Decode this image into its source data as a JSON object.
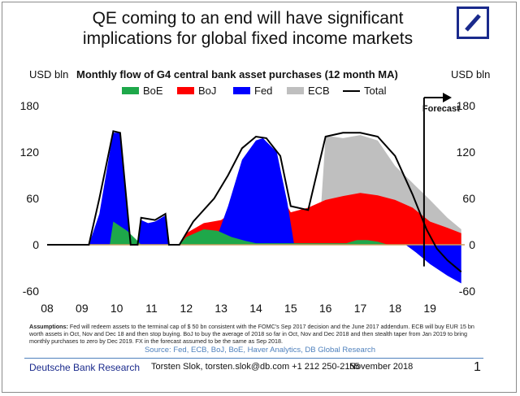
{
  "title_line1": "QE coming to an end will have significant",
  "title_line2": "implications for global fixed income markets",
  "chart_data": {
    "type": "area",
    "title": "Monthly flow of G4 central bank asset purchases (12 month MA)",
    "unit_left": "USD bln",
    "unit_right": "USD bln",
    "ylim": [
      -60,
      180
    ],
    "yticks": [
      180,
      120,
      60,
      0,
      -60
    ],
    "xlim": [
      2008,
      2020
    ],
    "xticks": [
      2008,
      2009,
      2010,
      2011,
      2012,
      2013,
      2014,
      2015,
      2016,
      2017,
      2018,
      2019
    ],
    "xticklabels": [
      "08",
      "09",
      "10",
      "11",
      "12",
      "13",
      "14",
      "15",
      "16",
      "17",
      "18",
      "19"
    ],
    "legend": [
      "BoE",
      "BoJ",
      "Fed",
      "ECB",
      "Total"
    ],
    "annotation": "Forecast",
    "forecast_start": 2018.83,
    "colors": {
      "BoE": "#1ea84a",
      "BoJ": "#ff0000",
      "Fed": "#0000ff",
      "ECB": "#bfbfbf",
      "Total": "#000000"
    },
    "series": [
      {
        "name": "BoE",
        "points": [
          [
            2008,
            0
          ],
          [
            2009.8,
            0
          ],
          [
            2009.9,
            30
          ],
          [
            2010.3,
            18
          ],
          [
            2010.6,
            5
          ],
          [
            2010.7,
            0
          ],
          [
            2011.8,
            0
          ],
          [
            2012.0,
            10
          ],
          [
            2012.5,
            20
          ],
          [
            2012.9,
            18
          ],
          [
            2013.3,
            10
          ],
          [
            2013.7,
            5
          ],
          [
            2014.0,
            2
          ],
          [
            2016.6,
            2
          ],
          [
            2016.9,
            6
          ],
          [
            2017.2,
            6
          ],
          [
            2017.5,
            4
          ],
          [
            2017.8,
            0
          ],
          [
            2020,
            0
          ]
        ]
      },
      {
        "name": "BoJ",
        "points": [
          [
            2008,
            0
          ],
          [
            2011.8,
            0
          ],
          [
            2012.0,
            15
          ],
          [
            2012.5,
            28
          ],
          [
            2013.0,
            32
          ],
          [
            2013.5,
            48
          ],
          [
            2014.0,
            52
          ],
          [
            2014.5,
            55
          ],
          [
            2014.8,
            58
          ],
          [
            2015.0,
            42
          ],
          [
            2015.5,
            48
          ],
          [
            2016.0,
            58
          ],
          [
            2016.5,
            63
          ],
          [
            2017.0,
            67
          ],
          [
            2017.5,
            64
          ],
          [
            2018.0,
            58
          ],
          [
            2018.5,
            48
          ],
          [
            2019.0,
            30
          ],
          [
            2019.5,
            22
          ],
          [
            2019.9,
            15
          ]
        ]
      },
      {
        "name": "Fed",
        "points": [
          [
            2008,
            0
          ],
          [
            2009.2,
            0
          ],
          [
            2009.5,
            40
          ],
          [
            2009.8,
            120
          ],
          [
            2009.9,
            145
          ],
          [
            2010.1,
            145
          ],
          [
            2010.4,
            0
          ],
          [
            2010.6,
            0
          ],
          [
            2010.7,
            32
          ],
          [
            2010.9,
            28
          ],
          [
            2011.1,
            30
          ],
          [
            2011.4,
            38
          ],
          [
            2011.5,
            0
          ],
          [
            2012.8,
            0
          ],
          [
            2013.2,
            50
          ],
          [
            2013.6,
            110
          ],
          [
            2014.0,
            135
          ],
          [
            2014.2,
            138
          ],
          [
            2014.6,
            120
          ],
          [
            2014.9,
            55
          ],
          [
            2015.1,
            0
          ],
          [
            2018.3,
            0
          ],
          [
            2018.6,
            -10
          ],
          [
            2019.0,
            -25
          ],
          [
            2019.5,
            -40
          ],
          [
            2019.9,
            -50
          ]
        ]
      },
      {
        "name": "ECB",
        "points": [
          [
            2008,
            0
          ],
          [
            2015.2,
            0
          ],
          [
            2015.8,
            0
          ],
          [
            2016.0,
            140
          ],
          [
            2016.2,
            140
          ],
          [
            2016.5,
            138
          ],
          [
            2017.0,
            142
          ],
          [
            2017.5,
            135
          ],
          [
            2018.0,
            102
          ],
          [
            2018.5,
            80
          ],
          [
            2019.0,
            58
          ],
          [
            2019.5,
            35
          ],
          [
            2019.9,
            20
          ]
        ]
      },
      {
        "name": "Total",
        "points": [
          [
            2008,
            0
          ],
          [
            2009.2,
            0
          ],
          [
            2009.5,
            60
          ],
          [
            2009.9,
            147
          ],
          [
            2010.1,
            145
          ],
          [
            2010.4,
            0
          ],
          [
            2010.6,
            0
          ],
          [
            2010.7,
            35
          ],
          [
            2011.1,
            32
          ],
          [
            2011.4,
            40
          ],
          [
            2011.5,
            0
          ],
          [
            2011.8,
            0
          ],
          [
            2012.2,
            30
          ],
          [
            2012.8,
            60
          ],
          [
            2013.2,
            90
          ],
          [
            2013.6,
            125
          ],
          [
            2014.0,
            140
          ],
          [
            2014.3,
            138
          ],
          [
            2014.7,
            115
          ],
          [
            2015.0,
            50
          ],
          [
            2015.5,
            45
          ],
          [
            2016.0,
            140
          ],
          [
            2016.5,
            145
          ],
          [
            2017.0,
            145
          ],
          [
            2017.5,
            140
          ],
          [
            2018.0,
            115
          ],
          [
            2018.5,
            65
          ],
          [
            2018.9,
            20
          ],
          [
            2019.2,
            -5
          ],
          [
            2019.5,
            -20
          ],
          [
            2019.9,
            -35
          ]
        ]
      }
    ]
  },
  "assumptions_label": "Assumptions:",
  "assumptions_text": "Fed will redeem assets to the terminal cap of $ 50 bn consistent with the FOMC's Sep 2017 decision and the June 2017 addendum. ECB will buy EUR 15 bn worth assets in Oct, Nov and Dec 18 and then stop buying. BoJ to buy the average of 2018 so far in Oct, Nov and Dec 2018 and then stealth taper from Jan 2019 to bring monthly purchases to zero by Dec 2019. FX in the forecast assumed to be the same as Sep 2018.",
  "source": "Source: Fed, ECB, BoJ, BoE, Haver Analytics, DB Global Research",
  "footer": {
    "brand": "Deutsche Bank Research",
    "author": "Torsten Slok, torsten.slok@db.com  +1 212 250-2155",
    "date": "November 2018",
    "page": "1"
  }
}
